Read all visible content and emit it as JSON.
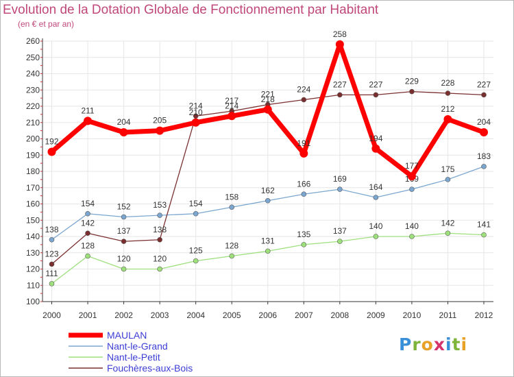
{
  "title": "Evolution de la Dotation Globale de Fonctionnement par Habitant",
  "subtitle": "(en € et par an)",
  "logo_text": "Proxiti",
  "chart_data": {
    "type": "line",
    "x": [
      "2000",
      "2001",
      "2002",
      "2003",
      "2004",
      "2005",
      "2006",
      "2007",
      "2008",
      "2009",
      "2010",
      "2011",
      "2012"
    ],
    "ylim": [
      100,
      260
    ],
    "yticks": [
      100,
      110,
      120,
      130,
      140,
      150,
      160,
      170,
      180,
      190,
      200,
      210,
      220,
      230,
      240,
      250,
      260
    ],
    "grid": true,
    "legend_position": "bottom-left",
    "series": [
      {
        "name": "MAULAN",
        "color": "#ff0000",
        "values": [
          192,
          211,
          204,
          205,
          210,
          214,
          218,
          191,
          258,
          194,
          177,
          212,
          204
        ]
      },
      {
        "name": "Nant-le-Grand",
        "color": "#7aa6cf",
        "values": [
          138,
          154,
          152,
          153,
          154,
          158,
          162,
          166,
          169,
          164,
          169,
          175,
          183
        ]
      },
      {
        "name": "Nant-le-Petit",
        "color": "#9ee07c",
        "values": [
          111,
          128,
          120,
          120,
          125,
          128,
          131,
          135,
          137,
          140,
          140,
          142,
          141
        ]
      },
      {
        "name": "Fouchères-aux-Bois",
        "color": "#7a2e2e",
        "values": [
          123,
          142,
          137,
          138,
          214,
          217,
          221,
          224,
          227,
          227,
          229,
          228,
          227
        ]
      }
    ]
  }
}
